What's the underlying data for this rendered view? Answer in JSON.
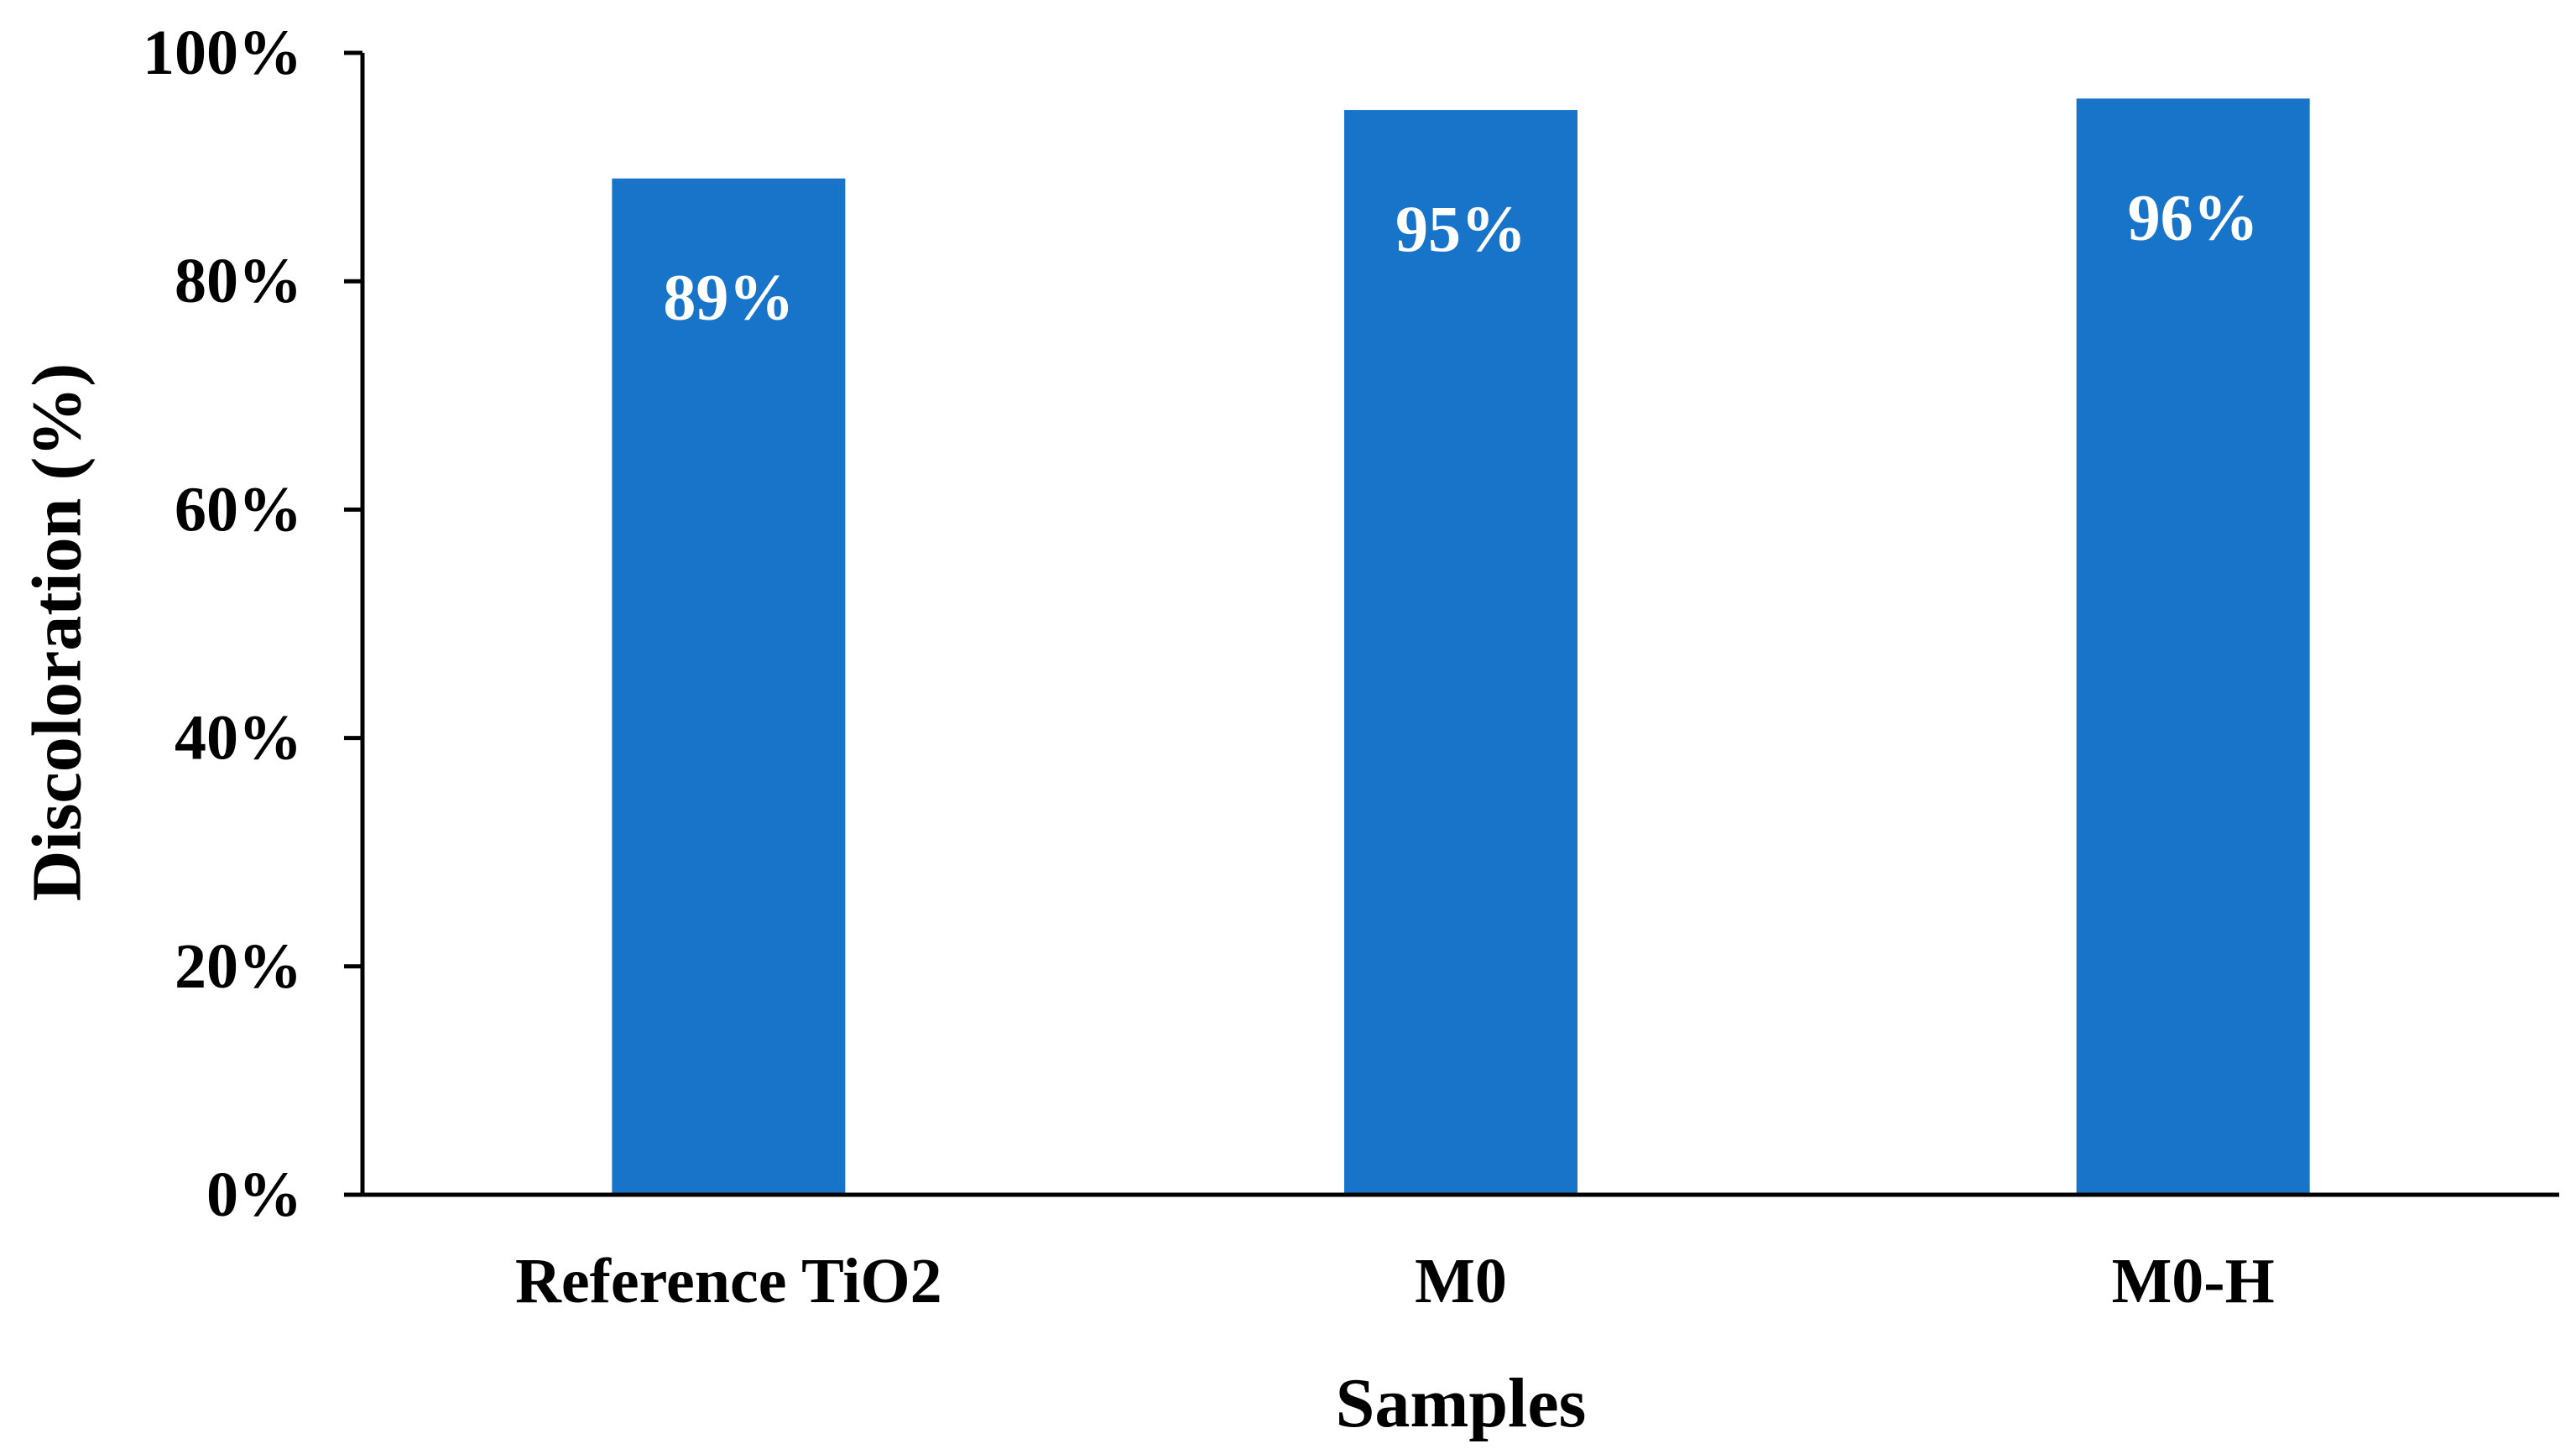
{
  "chart_data": {
    "type": "bar",
    "categories": [
      "Reference TiO2",
      "M0",
      "M0-H"
    ],
    "values": [
      89,
      95,
      96
    ],
    "value_labels": [
      "89%",
      "95%",
      "96%"
    ],
    "title": "",
    "xlabel": "Samples",
    "ylabel": "Discoloration (%)",
    "ylim": [
      0,
      100
    ],
    "y_ticks": [
      0,
      20,
      40,
      60,
      80,
      100
    ],
    "y_tick_labels": [
      "0%",
      "20%",
      "40%",
      "60%",
      "80%",
      "100%"
    ],
    "grid": false,
    "legend": "none",
    "bar_color": "#1874C8",
    "bar_label_color": "#ffffff",
    "axis_color": "#000000"
  }
}
